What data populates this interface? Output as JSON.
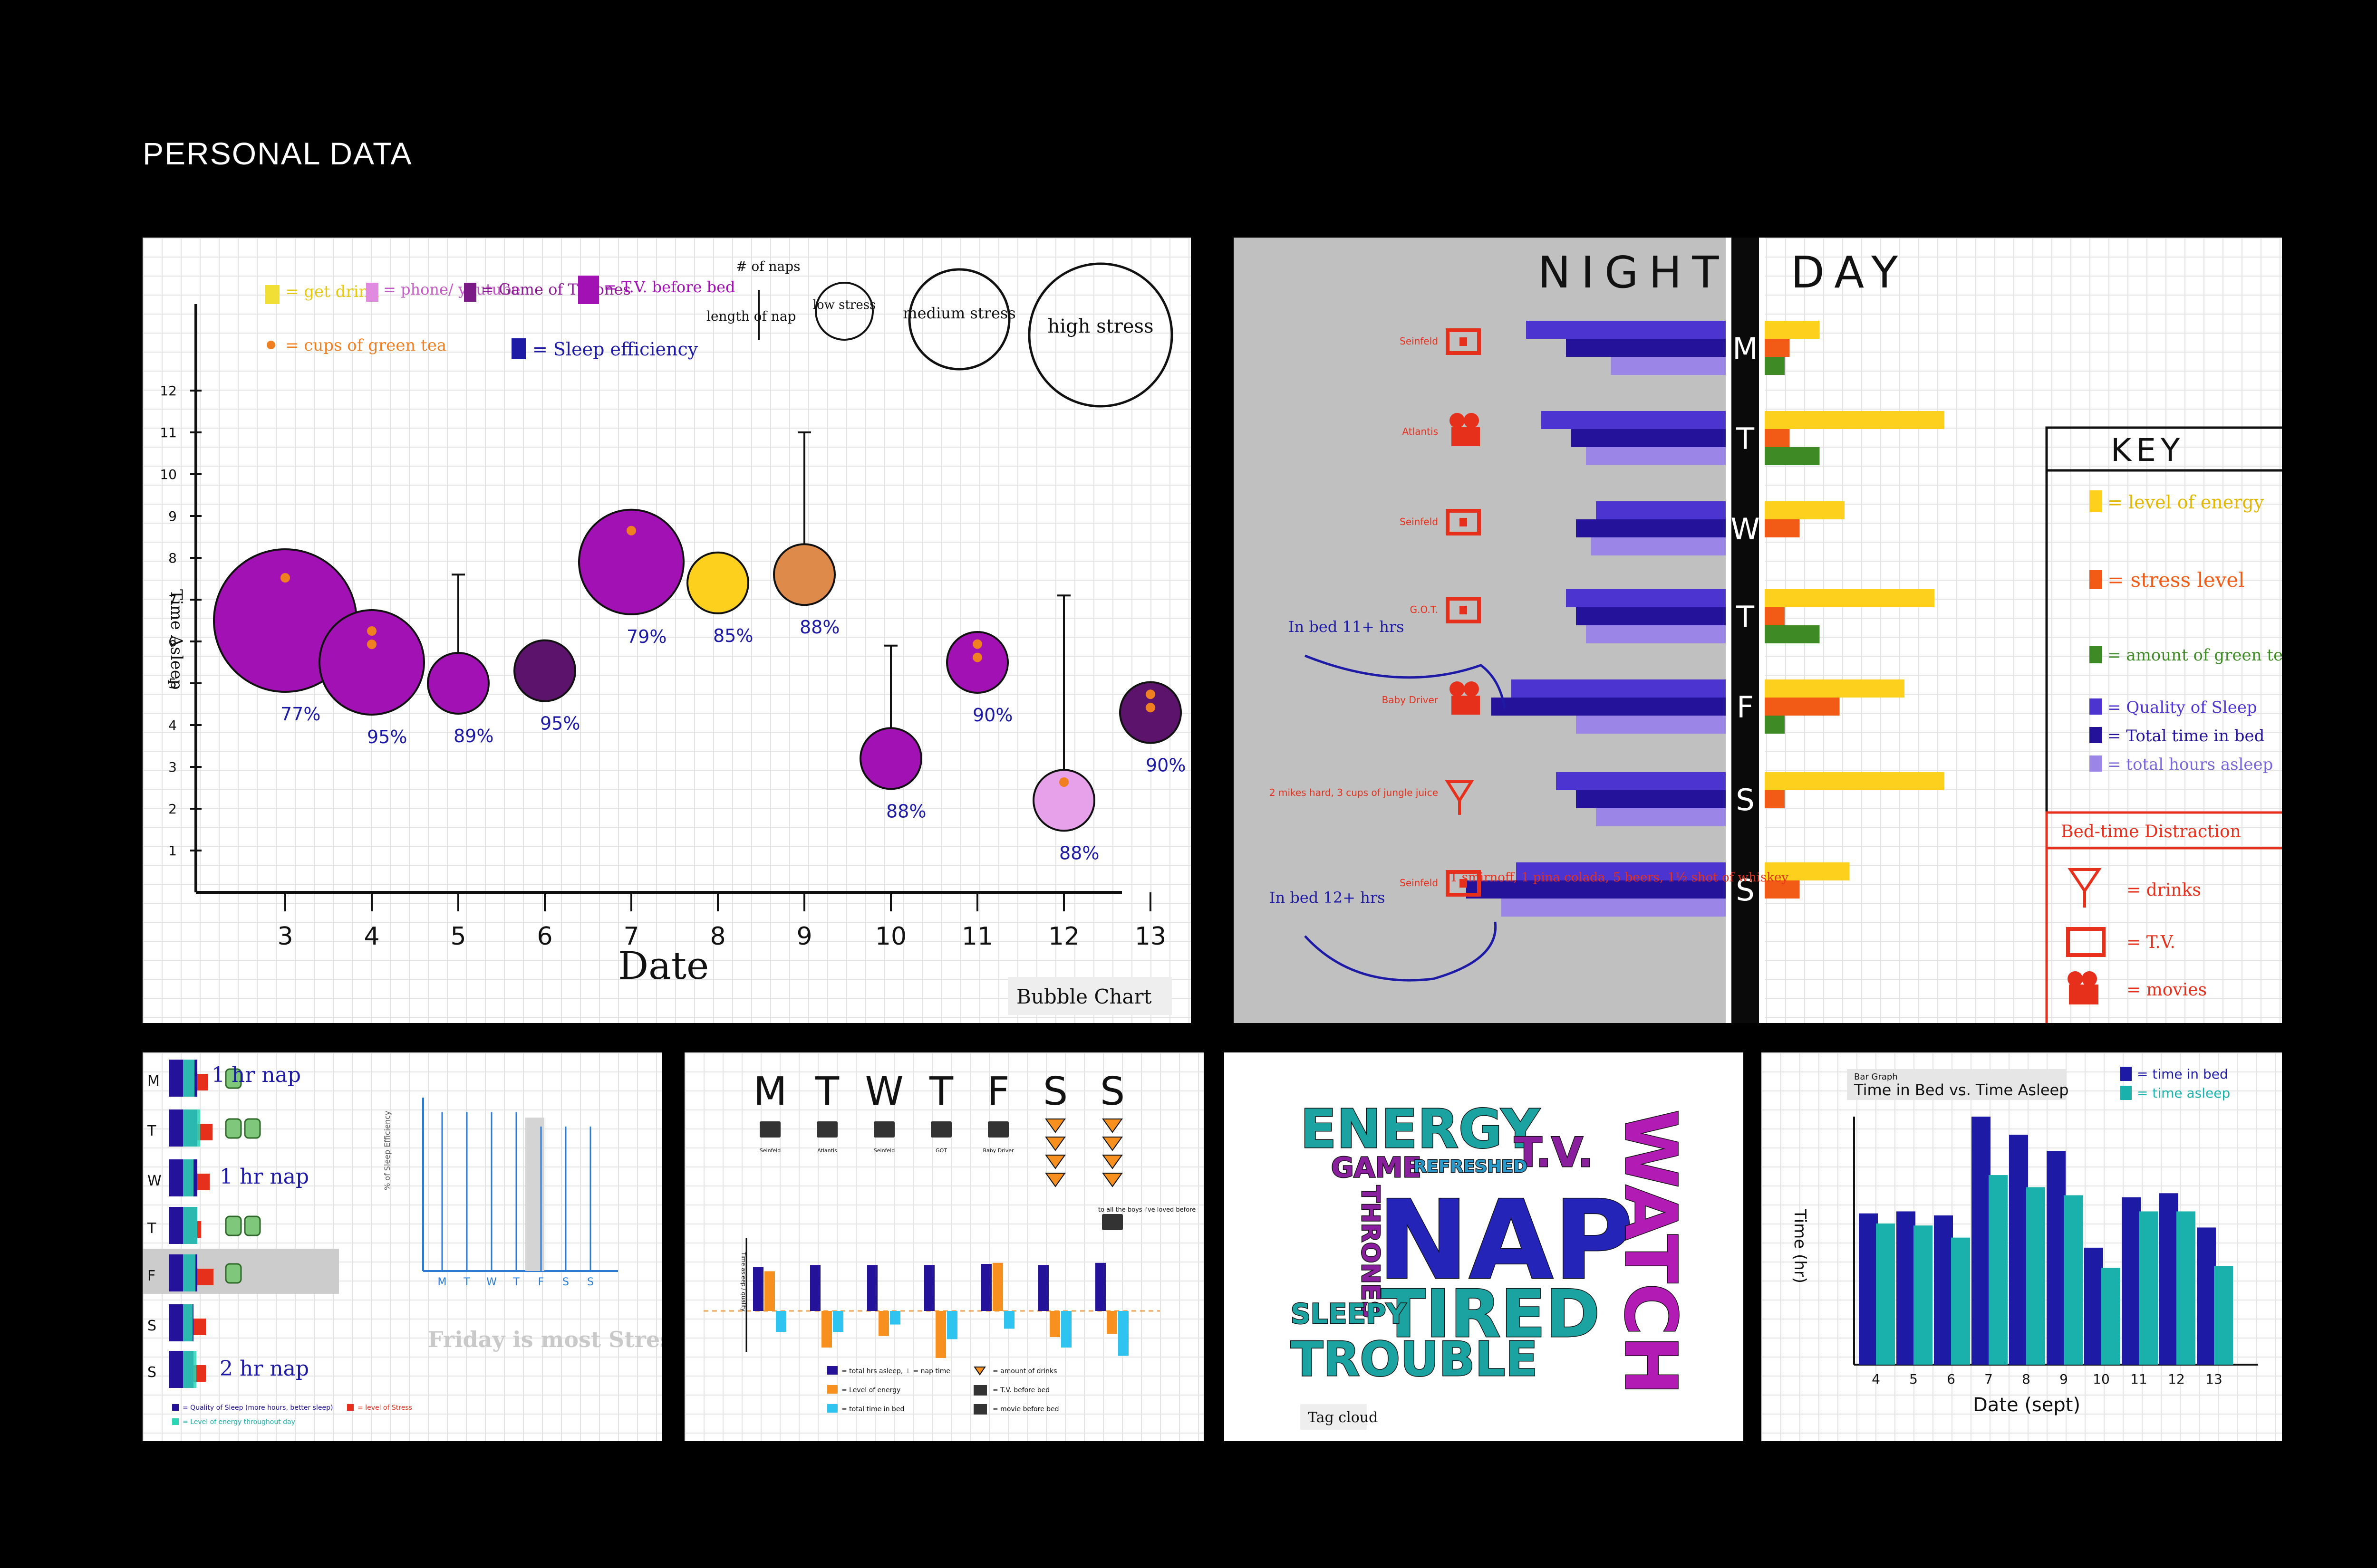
{
  "page_title": "PERSONAL DATA",
  "bubble_chart": {
    "caption": "Bubble Chart",
    "legend": {
      "get_drink": "= get drink",
      "phone_youtube": "= phone/ youtube",
      "game_of_thrones": "= Game of Thrones",
      "tv_before_bed": "= T.V. before bed",
      "green_tea": "= cups of green tea",
      "sleep_efficiency": "= Sleep efficiency",
      "num_naps": "# of naps",
      "length_nap": "length of nap",
      "low_stress": "low stress",
      "medium_stress": "medium stress",
      "high_stress": "high stress"
    }
  },
  "night_day": {
    "night_title": "NIGHT",
    "day_title": "DAY",
    "days": [
      "M",
      "T",
      "W",
      "T",
      "F",
      "S",
      "S"
    ],
    "night_labels": [
      "Seinfeld",
      "Atlantis",
      "Seinfeld",
      "G.O.T.",
      "Baby Driver",
      "2 mikes hard, 3 cups of jungle juice",
      "Seinfeld"
    ],
    "annotations": {
      "in_bed_11": "In bed 11+ hrs",
      "in_bed_12": "In bed 12+ hrs",
      "saturday_drinks": "1 smirnoff, 1 pina colada, 5 beers, 1½ shot of whiskey"
    },
    "key_title": "KEY",
    "key": {
      "energy": "= level of energy",
      "stress": "= stress level",
      "tea": "= amount of green tea",
      "quality": "= Quality of Sleep",
      "total_bed": "= Total time in bed",
      "total_asleep": "= total hours asleep"
    },
    "distraction_title": "Bed-time Distraction",
    "distractions": {
      "drinks": "= drinks",
      "tv": "= T.V.",
      "movies": "= movies"
    }
  },
  "nap_panel": {
    "days": [
      "M",
      "T",
      "W",
      "T",
      "F",
      "S",
      "S"
    ],
    "naps": {
      "m": "1 hr nap",
      "w": "1 hr nap",
      "s2": "2 hr nap"
    },
    "mini_ylabel": "% of Sleep Efficiency",
    "mini_days": [
      "M",
      "T",
      "W",
      "T",
      "F",
      "S",
      "S"
    ],
    "note": "Friday is most Stressful day",
    "legend": {
      "quality": "= Quality of Sleep (more hours, better sleep)",
      "stress": "= level of Stress",
      "energy": "= Level of energy throughout day"
    }
  },
  "weekday_panel": {
    "days": [
      "M",
      "T",
      "W",
      "T",
      "F",
      "S",
      "S"
    ],
    "icon_labels": [
      "Seinfeld",
      "Atlantis",
      "Seinfeld",
      "GOT",
      "Baby Driver"
    ],
    "side_note": "to all the boys i've loved before",
    "axis_label": "Time asleep / quality",
    "legend": {
      "total": "= total hrs asleep, ⊥ = nap time",
      "energy": "= Level of energy",
      "bed": "= total time in bed",
      "drinks": "= amount of drinks",
      "tv": "= T.V. before bed",
      "movie": "= movie before bed"
    }
  },
  "tag_cloud": {
    "caption": "Tag cloud",
    "words": [
      "ENERGY",
      "T.V.",
      "GAME",
      "REFRESHED",
      "THRONES",
      "NAP",
      "WATCH",
      "TIRED",
      "SLEEPY",
      "TROUBLE"
    ]
  },
  "bar_graph": {
    "small_title": "Bar Graph",
    "legend": {
      "bed": "= time in bed",
      "asleep": "= time asleep"
    }
  },
  "colors": {
    "purple": "#a111b3",
    "dark_purple": "#5c136c",
    "light_purple": "#e7a0ea",
    "yellow": "#fcd01c",
    "orange": "#f7a04a",
    "navy": "#24129a",
    "teal": "#1ab0ac",
    "red": "#e6301c",
    "indigo": "#4b34d0",
    "lavender": "#9b86e8"
  },
  "chart_data": [
    {
      "type": "scatter",
      "subtype": "bubble",
      "title": "",
      "xlabel": "Date",
      "ylabel": "Time Asleep",
      "ylim": [
        0,
        12
      ],
      "x": [
        3,
        4,
        5,
        6,
        7,
        8,
        9,
        10,
        11,
        12,
        13
      ],
      "y": [
        6.5,
        5.5,
        5,
        5.3,
        7.9,
        7.4,
        7.6,
        3.2,
        5.5,
        2.2,
        4.3
      ],
      "stress": [
        "high",
        "medium",
        "low",
        "low",
        "medium",
        "low",
        "low",
        "low",
        "low",
        "low",
        "low"
      ],
      "efficiency_labels": [
        "77%",
        "95%",
        "89%",
        "95%",
        "79%",
        "85%",
        "88%",
        "88%",
        "90%",
        "88%",
        "90%"
      ],
      "nap_top": [
        null,
        null,
        7.6,
        null,
        null,
        null,
        11,
        5.9,
        null,
        7.1,
        null
      ],
      "green_tea_cups": [
        1,
        2,
        0,
        0,
        1,
        0,
        0,
        0,
        2,
        1,
        2
      ],
      "tick_labels_y": [
        "1",
        "2",
        "3",
        "4",
        "5",
        "6",
        "7",
        "8",
        "9",
        "10",
        "11",
        "12"
      ],
      "tick_labels_x": [
        "3",
        "4",
        "5",
        "6",
        "7",
        "8",
        "9",
        "10",
        "11",
        "12",
        "13"
      ]
    },
    {
      "type": "bar",
      "subtype": "night-day",
      "categories": [
        "M",
        "T",
        "W",
        "T",
        "F",
        "S",
        "S"
      ],
      "night": {
        "series": [
          {
            "name": "Quality of Sleep",
            "values": [
              4,
              3.7,
              2.6,
              3.2,
              4.3,
              3.4,
              4.2
            ]
          },
          {
            "name": "Total time in bed",
            "values": [
              3.2,
              3.1,
              3.0,
              3.0,
              4.7,
              3.0,
              5.2
            ]
          },
          {
            "name": "total hours asleep",
            "values": [
              2.3,
              2.8,
              2.7,
              2.8,
              3.0,
              2.6,
              4.5
            ]
          }
        ]
      },
      "day": {
        "series": [
          {
            "name": "level of energy",
            "values": [
              1.1,
              3.6,
              1.6,
              3.4,
              2.8,
              3.6,
              1.7
            ]
          },
          {
            "name": "stress level",
            "values": [
              0.5,
              0.5,
              0.7,
              0.4,
              1.5,
              0.4,
              0.7
            ]
          },
          {
            "name": "amount of green tea",
            "values": [
              0.4,
              1.1,
              0,
              1.1,
              0.4,
              0,
              0
            ]
          }
        ]
      }
    },
    {
      "type": "bar",
      "subtype": "stacked-horizontal",
      "categories": [
        "M",
        "T",
        "W",
        "T",
        "F",
        "S",
        "S"
      ],
      "series": [
        {
          "name": "Quality of Sleep",
          "values": [
            3,
            3,
            3,
            3,
            3,
            2.6,
            2.6
          ]
        },
        {
          "name": "level of Stress",
          "values": [
            1.1,
            1.6,
            1.3,
            0.4,
            1.7,
            1.3,
            1.3
          ]
        },
        {
          "name": "Level of energy",
          "values": [
            1.2,
            1.8,
            1.1,
            1.5,
            1.3,
            1.0,
            1.4
          ]
        }
      ],
      "green_tea_cups": [
        1,
        2,
        0,
        2,
        1,
        0,
        0
      ]
    },
    {
      "type": "line",
      "subtype": "mini",
      "categories": [
        "M",
        "T",
        "W",
        "T",
        "F",
        "S",
        "S"
      ],
      "ylim": [
        0,
        12
      ],
      "values": [
        11,
        11,
        11,
        11,
        10,
        10,
        10
      ]
    },
    {
      "type": "bar",
      "subtype": "weekday",
      "categories": [
        "M",
        "T",
        "W",
        "T",
        "F",
        "S",
        "S"
      ],
      "series": [
        {
          "name": "total hrs asleep",
          "values": [
            4.2,
            4.4,
            4.4,
            4.4,
            4.5,
            4.4,
            4.6
          ]
        },
        {
          "name": "Level of energy",
          "values": [
            3.8,
            -3.5,
            -2.4,
            -4.5,
            4.6,
            -2.5,
            -2.2
          ]
        },
        {
          "name": "total time in bed",
          "values": [
            -2,
            -2,
            -1.3,
            -2.7,
            -1.7,
            -3.5,
            -4.3
          ]
        }
      ],
      "drinks": [
        0,
        0,
        0,
        0,
        0,
        4,
        4
      ]
    },
    {
      "type": "bar",
      "title": "Time in Bed vs. Time Asleep",
      "xlabel": "Date (sept)",
      "ylabel": "Time (hr)",
      "ylim": [
        0,
        12
      ],
      "categories": [
        "4",
        "5",
        "6",
        "7",
        "8",
        "9",
        "10",
        "11",
        "12",
        "13"
      ],
      "series": [
        {
          "name": "time in bed",
          "values": [
            7.5,
            7.6,
            7.4,
            12.3,
            11.4,
            10.6,
            5.8,
            8.3,
            8.5,
            6.8
          ]
        },
        {
          "name": "time asleep",
          "values": [
            7.0,
            6.9,
            6.3,
            9.4,
            8.8,
            8.4,
            4.8,
            7.6,
            7.6,
            4.9
          ]
        }
      ]
    }
  ]
}
